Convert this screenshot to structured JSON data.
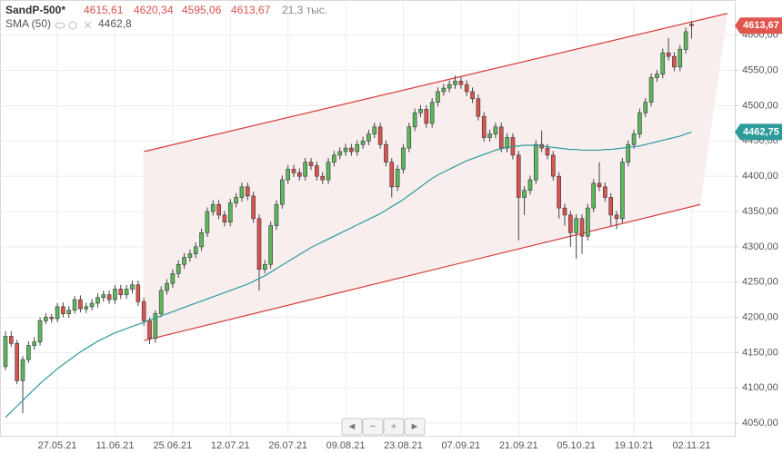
{
  "chart_data": {
    "type": "candlestick",
    "header_labels": [
      "4615,61",
      "4620,34",
      "4595,06",
      "4613,67"
    ],
    "volume_label": "21,3 тыс.",
    "categories": [
      null,
      null,
      null,
      null,
      null,
      null,
      null,
      null,
      null,
      "27.05.21",
      null,
      null,
      null,
      null,
      null,
      null,
      null,
      null,
      null,
      "11.06.21",
      null,
      null,
      null,
      null,
      null,
      null,
      null,
      null,
      null,
      "25.06.21",
      null,
      null,
      null,
      null,
      null,
      null,
      null,
      null,
      null,
      "12.07.21",
      null,
      null,
      null,
      null,
      null,
      null,
      null,
      null,
      null,
      "26.07.21",
      null,
      null,
      null,
      null,
      null,
      null,
      null,
      null,
      null,
      "09.08.21",
      null,
      null,
      null,
      null,
      null,
      null,
      null,
      null,
      null,
      "23.08.21",
      null,
      null,
      null,
      null,
      null,
      null,
      null,
      null,
      null,
      "07.09.21",
      null,
      null,
      null,
      null,
      null,
      null,
      null,
      null,
      null,
      "21.09.21",
      null,
      null,
      null,
      null,
      null,
      null,
      null,
      null,
      null,
      "05.10.21",
      null,
      null,
      null,
      null,
      null,
      null,
      null,
      null,
      null,
      "19.10.21",
      null,
      null,
      null,
      null,
      null,
      null,
      null,
      null,
      null,
      "02.11.21"
    ],
    "series": [
      {
        "name": "SandP-500*",
        "up_color": "#5cb85c",
        "down_color": "#d9534f",
        "open": [
          4130,
          4173,
          4163,
          4110,
          4140,
          4160,
          4165,
          4195,
          4200,
          4198,
          4215,
          4205,
          4210,
          4225,
          4212,
          4215,
          4220,
          4228,
          4232,
          4225,
          4240,
          4232,
          4240,
          4246,
          4222,
          4195,
          4170,
          4205,
          4238,
          4248,
          4262,
          4275,
          4285,
          4290,
          4300,
          4320,
          4350,
          4360,
          4345,
          4335,
          4362,
          4370,
          4385,
          4372,
          4340,
          4268,
          4275,
          4330,
          4360,
          4395,
          4410,
          4405,
          4400,
          4420,
          4415,
          4400,
          4395,
          4420,
          4430,
          4435,
          4440,
          4435,
          4445,
          4450,
          4460,
          4470,
          4445,
          4420,
          4385,
          4410,
          4440,
          4470,
          4490,
          4495,
          4475,
          4505,
          4520,
          4525,
          4530,
          4535,
          4530,
          4520,
          4510,
          4485,
          4455,
          4460,
          4470,
          4440,
          4455,
          4430,
          4370,
          4380,
          4395,
          4445,
          4440,
          4430,
          4400,
          4355,
          4345,
          4320,
          4340,
          4315,
          4355,
          4390,
          4385,
          4370,
          4345,
          4340,
          4420,
          4445,
          4460,
          4490,
          4505,
          4540,
          4545,
          4575,
          4570,
          4555,
          4580,
          4615.61
        ],
        "high": [
          4180,
          4180,
          4168,
          4145,
          4166,
          4172,
          4200,
          4206,
          4205,
          4220,
          4221,
          4216,
          4230,
          4231,
          4221,
          4226,
          4234,
          4238,
          4238,
          4246,
          4246,
          4246,
          4252,
          4252,
          4228,
          4200,
          4210,
          4244,
          4254,
          4268,
          4281,
          4291,
          4296,
          4306,
          4326,
          4356,
          4366,
          4366,
          4351,
          4368,
          4376,
          4391,
          4391,
          4378,
          4346,
          4281,
          4336,
          4366,
          4401,
          4416,
          4416,
          4411,
          4426,
          4426,
          4421,
          4406,
          4426,
          4436,
          4441,
          4446,
          4446,
          4451,
          4456,
          4466,
          4476,
          4476,
          4451,
          4426,
          4416,
          4446,
          4476,
          4496,
          4501,
          4501,
          4511,
          4526,
          4531,
          4536,
          4543,
          4541,
          4536,
          4526,
          4516,
          4491,
          4466,
          4476,
          4476,
          4461,
          4461,
          4436,
          4386,
          4401,
          4451,
          4465,
          4446,
          4436,
          4406,
          4361,
          4351,
          4346,
          4346,
          4361,
          4396,
          4420,
          4391,
          4376,
          4351,
          4426,
          4451,
          4466,
          4496,
          4511,
          4546,
          4551,
          4581,
          4596,
          4576,
          4586,
          4611,
          4620.34
        ],
        "low": [
          4125,
          4158,
          4105,
          4064,
          4135,
          4154,
          4160,
          4190,
          4192,
          4193,
          4200,
          4199,
          4205,
          4207,
          4206,
          4210,
          4214,
          4222,
          4219,
          4219,
          4226,
          4226,
          4234,
          4216,
          4188,
          4162,
          4164,
          4200,
          4232,
          4242,
          4256,
          4269,
          4279,
          4284,
          4294,
          4314,
          4344,
          4339,
          4329,
          4329,
          4356,
          4364,
          4366,
          4334,
          4238,
          4262,
          4269,
          4324,
          4354,
          4389,
          4399,
          4394,
          4394,
          4409,
          4394,
          4389,
          4389,
          4414,
          4424,
          4429,
          4429,
          4429,
          4439,
          4444,
          4454,
          4439,
          4414,
          4370,
          4379,
          4404,
          4434,
          4464,
          4484,
          4469,
          4469,
          4499,
          4514,
          4519,
          4524,
          4524,
          4514,
          4504,
          4479,
          4449,
          4449,
          4454,
          4434,
          4434,
          4424,
          4309,
          4345,
          4374,
          4389,
          4434,
          4424,
          4394,
          4340,
          4330,
          4300,
          4283,
          4290,
          4309,
          4349,
          4379,
          4364,
          4330,
          4325,
          4334,
          4414,
          4439,
          4454,
          4484,
          4499,
          4534,
          4539,
          4564,
          4549,
          4549,
          4574,
          4595.06
        ],
        "close": [
          4173,
          4163,
          4110,
          4140,
          4160,
          4165,
          4195,
          4200,
          4198,
          4215,
          4205,
          4210,
          4225,
          4212,
          4215,
          4220,
          4228,
          4232,
          4225,
          4240,
          4232,
          4240,
          4246,
          4222,
          4195,
          4170,
          4205,
          4238,
          4248,
          4262,
          4275,
          4285,
          4290,
          4300,
          4320,
          4350,
          4360,
          4345,
          4335,
          4362,
          4370,
          4385,
          4372,
          4340,
          4268,
          4275,
          4330,
          4360,
          4395,
          4410,
          4405,
          4400,
          4420,
          4415,
          4400,
          4395,
          4420,
          4430,
          4435,
          4440,
          4435,
          4445,
          4450,
          4460,
          4470,
          4445,
          4420,
          4385,
          4410,
          4440,
          4470,
          4490,
          4495,
          4475,
          4505,
          4520,
          4525,
          4530,
          4535,
          4530,
          4520,
          4510,
          4485,
          4455,
          4460,
          4470,
          4440,
          4455,
          4430,
          4370,
          4380,
          4395,
          4445,
          4440,
          4430,
          4400,
          4355,
          4345,
          4320,
          4340,
          4315,
          4355,
          4390,
          4385,
          4370,
          4345,
          4340,
          4420,
          4445,
          4460,
          4490,
          4505,
          4540,
          4545,
          4575,
          4570,
          4555,
          4580,
          4605,
          4613.67
        ]
      },
      {
        "name": "SMA (50)",
        "color": "#2e9a9a",
        "value_label": "4462,8",
        "values": [
          4058,
          4066,
          4074,
          4082,
          4090,
          4098,
          4106,
          4113,
          4120,
          4127,
          4133,
          4139,
          4145,
          4151,
          4156,
          4161,
          4166,
          4170,
          4174,
          4178,
          4181,
          4184,
          4187,
          4190,
          4193,
          4196,
          4199,
          4202,
          4205,
          4208,
          4211,
          4214,
          4217,
          4220,
          4223,
          4226,
          4229,
          4232,
          4235,
          4238,
          4241,
          4244,
          4247,
          4251,
          4255,
          4259,
          4264,
          4269,
          4274,
          4279,
          4284,
          4289,
          4294,
          4299,
          4303,
          4307,
          4311,
          4315,
          4319,
          4323,
          4327,
          4331,
          4335,
          4339,
          4343,
          4347,
          4352,
          4357,
          4362,
          4367,
          4373,
          4379,
          4385,
          4391,
          4397,
          4402,
          4406,
          4410,
          4414,
          4418,
          4422,
          4425,
          4428,
          4431,
          4434,
          4437,
          4439,
          4441,
          4442,
          4443,
          4444,
          4444,
          4444,
          4443,
          4442,
          4441,
          4440,
          4439,
          4438,
          4438,
          4437,
          4437,
          4437,
          4437,
          4438,
          4438,
          4439,
          4440,
          4441,
          4442,
          4443,
          4445,
          4447,
          4449,
          4451,
          4453,
          4455,
          4457,
          4460,
          4462.75
        ]
      }
    ],
    "trend_channel": {
      "color": "#d93a3a",
      "fill": "#f8eeee",
      "upper": [
        4435,
        4631
      ],
      "lower": [
        4167,
        4360
      ]
    },
    "price_tags": [
      {
        "value": 4613.67,
        "label": "4613,67",
        "color": "#e0574f"
      },
      {
        "value": 4462.75,
        "label": "4462,75",
        "color": "#2e9a9a"
      }
    ],
    "ylim": [
      4032,
      4650
    ],
    "yticks": [
      {
        "value": 4050,
        "label": "4050,00"
      },
      {
        "value": 4100,
        "label": "4100,00"
      },
      {
        "value": 4150,
        "label": "4150,00"
      },
      {
        "value": 4200,
        "label": "4200,00"
      },
      {
        "value": 4250,
        "label": "4250,00"
      },
      {
        "value": 4300,
        "label": "4300,00"
      },
      {
        "value": 4350,
        "label": "4350,00"
      },
      {
        "value": 4400,
        "label": "4400,00"
      },
      {
        "value": 4450,
        "label": "4450,00"
      },
      {
        "value": 4500,
        "label": "4500,00"
      },
      {
        "value": 4550,
        "label": "4550,00"
      },
      {
        "value": 4600,
        "label": "4600,00"
      }
    ],
    "grid": true
  }
}
